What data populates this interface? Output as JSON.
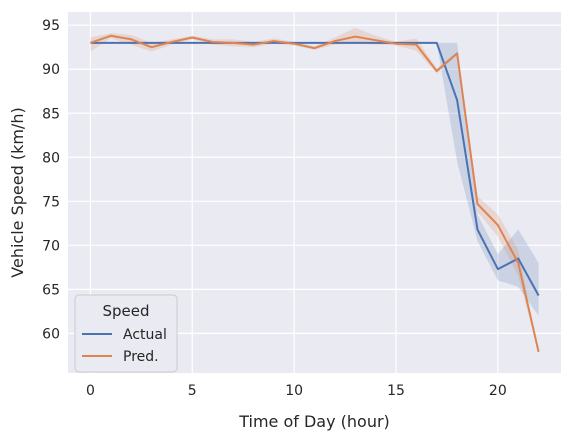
{
  "chart_data": {
    "type": "line",
    "title": "",
    "xlabel": "Time of Day (hour)",
    "ylabel": "Vehicle Speed (km/h)",
    "xlim": [
      -1.1,
      23.1
    ],
    "ylim": [
      55.5,
      96.5
    ],
    "xticks": [
      0,
      5,
      10,
      15,
      20
    ],
    "yticks": [
      60,
      65,
      70,
      75,
      80,
      85,
      90,
      95
    ],
    "grid": true,
    "legend": {
      "title": "Speed",
      "placement": "lower-left"
    },
    "x": [
      0,
      1,
      2,
      3,
      4,
      5,
      6,
      7,
      8,
      9,
      10,
      11,
      12,
      13,
      14,
      15,
      16,
      17,
      18,
      19,
      20,
      21,
      22
    ],
    "series": [
      {
        "name": "Actual",
        "color": "#4c72b0",
        "values": [
          93.0,
          93.0,
          93.0,
          93.0,
          93.0,
          93.0,
          93.0,
          93.0,
          93.0,
          93.0,
          93.0,
          93.0,
          93.0,
          93.0,
          93.0,
          93.0,
          93.0,
          93.0,
          86.5,
          71.8,
          67.3,
          68.5,
          64.3
        ],
        "ci_low": [
          93.0,
          93.0,
          93.0,
          93.0,
          93.0,
          93.0,
          93.0,
          93.0,
          93.0,
          93.0,
          93.0,
          93.0,
          93.0,
          93.0,
          93.0,
          93.0,
          93.0,
          93.0,
          79.5,
          70.5,
          66.0,
          65.3,
          62.0
        ],
        "ci_high": [
          93.0,
          93.0,
          93.0,
          93.0,
          93.0,
          93.0,
          93.0,
          93.0,
          93.0,
          93.0,
          93.0,
          93.0,
          93.0,
          93.0,
          93.0,
          93.0,
          93.0,
          93.0,
          93.0,
          73.5,
          69.0,
          71.8,
          68.0
        ]
      },
      {
        "name": "Pred.",
        "color": "#dd8452",
        "values": [
          93.0,
          93.8,
          93.4,
          92.5,
          93.1,
          93.6,
          93.1,
          93.0,
          92.8,
          93.2,
          92.9,
          92.4,
          93.2,
          93.7,
          93.3,
          92.9,
          92.8,
          89.8,
          91.8,
          74.7,
          72.3,
          68.0,
          57.9
        ],
        "ci_low": [
          92.0,
          93.5,
          92.8,
          92.0,
          92.8,
          93.4,
          92.8,
          92.6,
          92.5,
          92.9,
          92.7,
          92.2,
          92.8,
          92.9,
          92.8,
          92.7,
          92.1,
          89.5,
          91.6,
          73.8,
          71.0,
          66.5,
          57.9
        ],
        "ci_high": [
          93.6,
          94.1,
          93.9,
          93.0,
          93.4,
          93.8,
          93.4,
          93.4,
          93.1,
          93.5,
          93.1,
          92.6,
          93.6,
          94.7,
          93.8,
          93.1,
          93.5,
          90.1,
          92.0,
          75.6,
          73.5,
          69.5,
          57.9
        ]
      }
    ]
  }
}
